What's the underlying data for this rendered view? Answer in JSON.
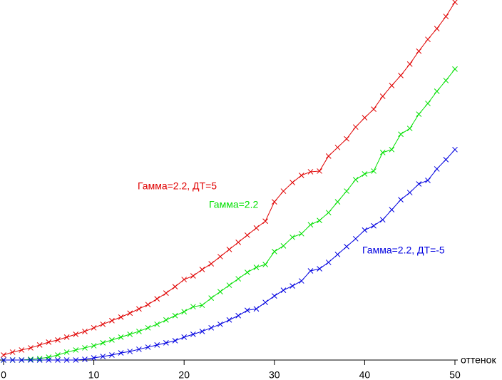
{
  "chart_data": {
    "type": "line",
    "x_label": "оттенок",
    "x": [
      0,
      1,
      2,
      3,
      4,
      5,
      6,
      7,
      8,
      9,
      10,
      11,
      12,
      13,
      14,
      15,
      16,
      17,
      18,
      19,
      20,
      21,
      22,
      23,
      24,
      25,
      26,
      27,
      28,
      29,
      30,
      31,
      32,
      33,
      34,
      35,
      36,
      37,
      38,
      39,
      40,
      41,
      42,
      43,
      44,
      45,
      46,
      47,
      48,
      49,
      50
    ],
    "xlim": [
      0,
      50
    ],
    "xticks": [
      0,
      10,
      20,
      30,
      40,
      50
    ],
    "ylim": [
      0,
      100
    ],
    "series": [
      {
        "name": "Гамма=2.2, ДТ=5",
        "color": "#e00000",
        "values": [
          1.4,
          2.2,
          2.8,
          3.4,
          4.2,
          5.0,
          5.6,
          6.4,
          7.2,
          8.0,
          9.0,
          10.0,
          11.0,
          12.0,
          13.1,
          14.3,
          15.5,
          17.1,
          18.7,
          20.5,
          22.5,
          23.5,
          25.3,
          26.9,
          28.9,
          30.9,
          32.9,
          34.9,
          36.9,
          38.8,
          44.2,
          47.2,
          49.6,
          51.6,
          52.6,
          52.8,
          57.0,
          59.4,
          61.8,
          65.1,
          67.7,
          70.1,
          73.7,
          76.7,
          79.5,
          82.7,
          86.3,
          89.6,
          92.6,
          96.0,
          100.0
        ]
      },
      {
        "name": "Гамма=2.2",
        "color": "#00e000",
        "values": [
          0,
          0,
          0,
          0.2,
          0.4,
          0.8,
          1.4,
          2.2,
          2.8,
          3.4,
          4.0,
          4.8,
          5.6,
          6.4,
          7.2,
          8.0,
          9.0,
          10.0,
          11.2,
          12.4,
          13.5,
          14.9,
          15.3,
          17.3,
          19.1,
          20.9,
          22.7,
          24.5,
          25.9,
          26.7,
          30.3,
          31.9,
          34.3,
          35.3,
          37.8,
          39.0,
          41.2,
          44.2,
          47.2,
          50.4,
          52.0,
          52.8,
          58.0,
          58.8,
          63.1,
          64.7,
          68.7,
          71.7,
          75.1,
          78.1,
          81.3
        ]
      },
      {
        "name": "Гамма=2.2, ДТ=-5",
        "color": "#0000e0",
        "values": [
          0,
          0,
          0,
          0,
          0,
          0,
          0,
          0,
          0,
          0.2,
          0.6,
          1.0,
          1.4,
          2.0,
          2.4,
          3.0,
          3.6,
          4.2,
          4.8,
          5.4,
          6.4,
          7.2,
          8.0,
          9.0,
          10.0,
          11.2,
          12.4,
          13.9,
          14.3,
          16.1,
          17.9,
          19.5,
          20.7,
          22.1,
          24.9,
          25.5,
          27.3,
          29.5,
          31.7,
          33.9,
          36.3,
          37.5,
          39.2,
          42.0,
          44.8,
          46.8,
          49.2,
          50.2,
          53.4,
          56.0,
          58.8
        ]
      }
    ]
  }
}
